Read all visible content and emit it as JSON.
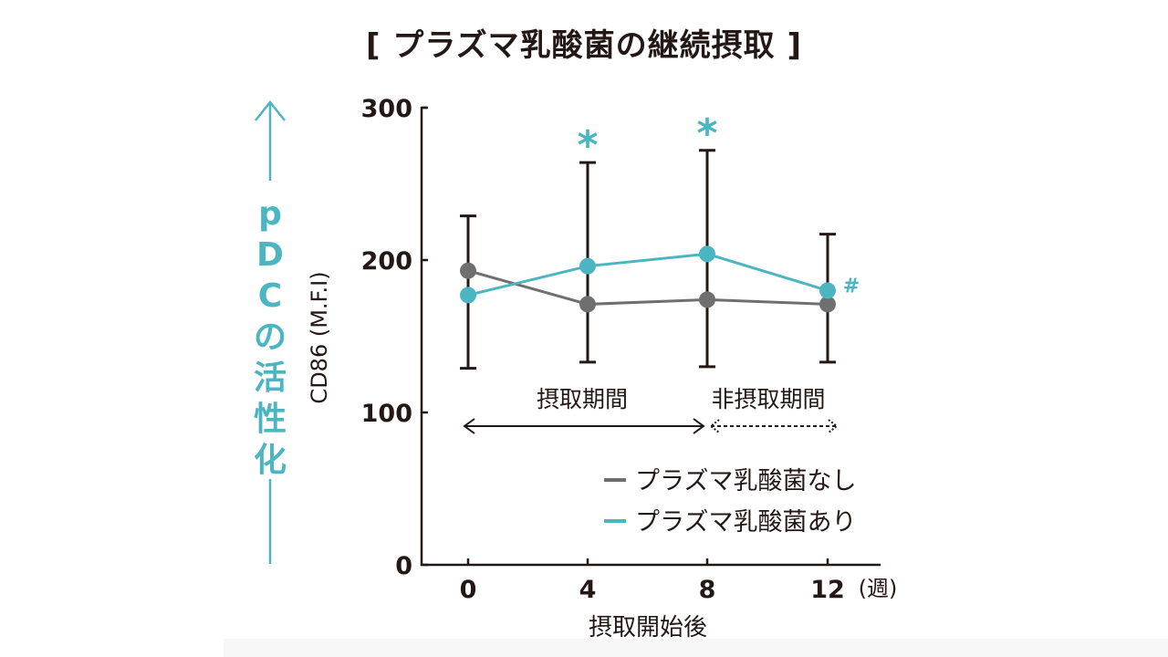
{
  "title": "[ プラズマ乳酸菌の継続摂取 ]",
  "side_label": {
    "text": "pDCの活性化",
    "color": "#4bb5c1"
  },
  "colors": {
    "without": "#6f6f6f",
    "with": "#4bb5c1",
    "axis": "#231815"
  },
  "chart_data": {
    "type": "line",
    "title": "[ プラズマ乳酸菌の継続摂取 ]",
    "xlabel": "摂取開始後",
    "x_unit": "(週)",
    "ylabel": "CD86 (M.F.I)",
    "ylim": [
      0,
      300
    ],
    "yticks": [
      0,
      100,
      200,
      300
    ],
    "x": [
      0,
      4,
      8,
      12
    ],
    "xticks": [
      "0",
      "4",
      "8",
      "12"
    ],
    "grid": false,
    "legend_position": "lower right",
    "series": [
      {
        "name": "プラズマ乳酸菌なし",
        "color": "#6f6f6f",
        "values": [
          193,
          171,
          174,
          171
        ]
      },
      {
        "name": "プラズマ乳酸菌あり",
        "color": "#4bb5c1",
        "values": [
          177,
          196,
          204,
          180
        ]
      }
    ],
    "error_bars": [
      {
        "x": 0,
        "upper": 229,
        "lower": 129
      },
      {
        "x": 4,
        "upper": 264,
        "lower": 133
      },
      {
        "x": 8,
        "upper": 272,
        "lower": 130
      },
      {
        "x": 12,
        "upper": 217,
        "lower": 133
      }
    ],
    "annotations": [
      {
        "x": 4,
        "text": "*",
        "color": "#4bb5c1"
      },
      {
        "x": 8,
        "text": "*",
        "color": "#4bb5c1"
      },
      {
        "x": 12,
        "text": "#",
        "color": "#4bb5c1"
      },
      {
        "text": "摂取期間",
        "span": [
          0,
          8
        ],
        "style": "solid double arrow"
      },
      {
        "text": "非摂取期間",
        "span": [
          8,
          12
        ],
        "style": "dashed double arrow"
      }
    ]
  },
  "legend": [
    {
      "label": "プラズマ乳酸菌なし",
      "color": "#6f6f6f"
    },
    {
      "label": "プラズマ乳酸菌あり",
      "color": "#4bb5c1"
    }
  ],
  "periods": {
    "intake": "摂取期間",
    "non_intake": "非摂取期間"
  }
}
